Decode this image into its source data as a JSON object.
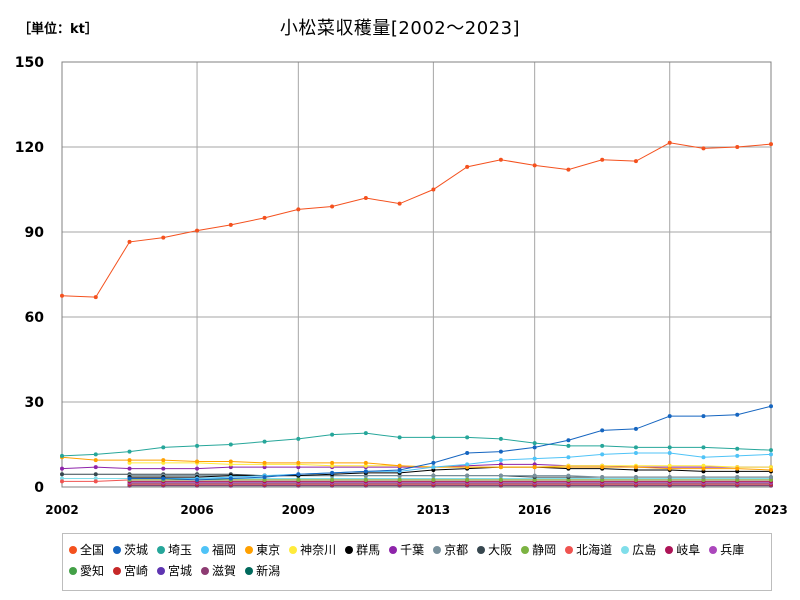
{
  "unit_label": "［単位：kt］",
  "chart_data": {
    "type": "line",
    "title": "小松菜収穫量[2002～2023]",
    "xlabel": "",
    "ylabel": "",
    "xlim": [
      2002,
      2023
    ],
    "ylim": [
      0,
      150
    ],
    "yticks": [
      0,
      30,
      60,
      90,
      120,
      150
    ],
    "xticks": [
      2002,
      2006,
      2009,
      2013,
      2016,
      2020,
      2023
    ],
    "grid": true,
    "legend_position": "bottom",
    "x": [
      2002,
      2003,
      2004,
      2005,
      2006,
      2007,
      2008,
      2009,
      2010,
      2011,
      2012,
      2013,
      2014,
      2015,
      2016,
      2017,
      2018,
      2019,
      2020,
      2021,
      2022,
      2023
    ],
    "series": [
      {
        "name": "全国",
        "color": "#f4511e",
        "values": [
          67.5,
          67.0,
          86.5,
          88.0,
          90.5,
          92.5,
          95.0,
          98.0,
          99.0,
          102.0,
          100.0,
          105.0,
          113.0,
          115.5,
          113.5,
          112.0,
          115.5,
          115.0,
          121.5,
          119.5,
          120.0,
          121.0
        ]
      },
      {
        "name": "茨城",
        "color": "#1565c0",
        "values": [
          null,
          null,
          3.0,
          3.0,
          2.5,
          3.0,
          3.5,
          4.5,
          5.0,
          5.5,
          6.0,
          8.5,
          12.0,
          12.5,
          14.0,
          16.5,
          20.0,
          20.5,
          25.0,
          25.0,
          25.5,
          28.5
        ]
      },
      {
        "name": "埼玉",
        "color": "#26a69a",
        "values": [
          11.0,
          11.5,
          12.5,
          14.0,
          14.5,
          15.0,
          16.0,
          17.0,
          18.5,
          19.0,
          17.5,
          17.5,
          17.5,
          17.0,
          15.5,
          14.5,
          14.5,
          14.0,
          14.0,
          14.0,
          13.5,
          13.0
        ]
      },
      {
        "name": "福岡",
        "color": "#4fc3f7",
        "values": [
          null,
          null,
          3.0,
          3.0,
          3.0,
          3.5,
          4.0,
          4.5,
          5.0,
          5.5,
          5.5,
          7.0,
          8.0,
          9.5,
          10.0,
          10.5,
          11.5,
          12.0,
          12.0,
          10.5,
          11.0,
          11.5
        ]
      },
      {
        "name": "東京",
        "color": "#ffa000",
        "values": [
          10.5,
          9.5,
          9.5,
          9.5,
          9.0,
          9.0,
          8.5,
          8.5,
          8.5,
          8.5,
          7.5,
          7.0,
          7.0,
          7.0,
          7.0,
          7.0,
          7.0,
          7.0,
          6.5,
          6.5,
          6.5,
          6.0
        ]
      },
      {
        "name": "神奈川",
        "color": "#ffeb3b",
        "values": [
          null,
          null,
          8.5,
          8.5,
          8.5,
          8.0,
          8.0,
          8.0,
          7.5,
          7.5,
          7.5,
          7.0,
          7.0,
          7.0,
          7.0,
          7.5,
          7.5,
          7.5,
          7.5,
          7.5,
          7.0,
          7.0
        ]
      },
      {
        "name": "群馬",
        "color": "#000000",
        "values": [
          null,
          null,
          3.5,
          3.5,
          3.5,
          4.0,
          4.0,
          4.0,
          4.5,
          5.0,
          5.0,
          6.0,
          6.5,
          7.0,
          7.0,
          6.5,
          6.5,
          6.0,
          6.0,
          5.5,
          5.5,
          5.5
        ]
      },
      {
        "name": "千葉",
        "color": "#8e24aa",
        "values": [
          6.5,
          7.0,
          6.5,
          6.5,
          6.5,
          7.0,
          7.0,
          7.0,
          7.0,
          7.0,
          7.0,
          7.0,
          7.5,
          8.0,
          8.0,
          7.5,
          7.5,
          7.0,
          7.0,
          7.0,
          7.0,
          7.0
        ]
      },
      {
        "name": "京都",
        "color": "#78909c",
        "values": [
          null,
          null,
          4.0,
          4.0,
          4.0,
          4.0,
          4.0,
          4.0,
          4.0,
          4.0,
          4.0,
          4.0,
          4.0,
          4.0,
          4.0,
          4.0,
          3.5,
          3.5,
          3.5,
          3.5,
          3.5,
          3.5
        ]
      },
      {
        "name": "大阪",
        "color": "#37474f",
        "values": [
          4.5,
          4.5,
          4.5,
          4.5,
          4.5,
          4.5,
          4.0,
          4.0,
          4.0,
          4.0,
          4.0,
          4.0,
          4.0,
          4.0,
          3.5,
          3.5,
          3.5,
          3.5,
          3.5,
          3.5,
          3.5,
          3.5
        ]
      },
      {
        "name": "静岡",
        "color": "#7cb342",
        "values": [
          null,
          null,
          2.5,
          2.5,
          2.5,
          2.5,
          2.5,
          2.5,
          2.5,
          2.5,
          2.5,
          2.5,
          2.5,
          2.5,
          2.5,
          2.5,
          2.5,
          2.5,
          2.5,
          2.5,
          2.5,
          2.5
        ]
      },
      {
        "name": "北海道",
        "color": "#ef5350",
        "values": [
          2.0,
          2.0,
          2.5,
          2.5,
          2.5,
          2.5,
          2.5,
          2.5,
          2.5,
          2.5,
          2.5,
          2.5,
          2.5,
          2.5,
          2.5,
          2.5,
          2.5,
          2.5,
          2.5,
          2.5,
          2.5,
          2.5
        ]
      },
      {
        "name": "広島",
        "color": "#80deea",
        "values": [
          3.0,
          3.0,
          3.0,
          3.0,
          3.0,
          3.0,
          3.0,
          3.0,
          3.0,
          3.0,
          3.0,
          3.0,
          3.0,
          3.0,
          3.0,
          3.0,
          3.0,
          3.0,
          3.0,
          3.0,
          3.0,
          3.0
        ]
      },
      {
        "name": "岐阜",
        "color": "#ad1457",
        "values": [
          null,
          null,
          2.0,
          2.0,
          2.0,
          2.0,
          2.0,
          2.0,
          2.0,
          2.0,
          2.0,
          2.0,
          2.0,
          2.0,
          2.0,
          2.0,
          2.0,
          2.0,
          2.0,
          2.0,
          2.0,
          2.0
        ]
      },
      {
        "name": "兵庫",
        "color": "#ab47bc",
        "values": [
          null,
          null,
          1.5,
          1.5,
          1.5,
          1.5,
          1.5,
          1.5,
          1.5,
          1.5,
          1.5,
          1.5,
          1.5,
          1.5,
          1.5,
          1.5,
          1.5,
          1.5,
          1.5,
          1.5,
          1.5,
          1.5
        ]
      },
      {
        "name": "愛知",
        "color": "#43a047",
        "values": [
          null,
          null,
          1.5,
          1.5,
          1.5,
          1.5,
          1.5,
          1.5,
          1.5,
          1.5,
          1.5,
          1.5,
          1.5,
          1.5,
          1.5,
          1.5,
          1.5,
          1.5,
          1.5,
          1.5,
          1.5,
          1.5
        ]
      },
      {
        "name": "宮崎",
        "color": "#c62828",
        "values": [
          null,
          null,
          1.0,
          1.0,
          1.0,
          1.0,
          1.0,
          1.0,
          1.0,
          1.0,
          1.0,
          1.0,
          1.0,
          1.0,
          1.0,
          1.0,
          1.0,
          1.0,
          1.0,
          1.0,
          1.0,
          1.0
        ]
      },
      {
        "name": "宮城",
        "color": "#5e35b1",
        "values": [
          null,
          null,
          1.0,
          1.0,
          1.0,
          1.0,
          1.0,
          1.0,
          1.0,
          1.0,
          1.0,
          1.0,
          1.0,
          1.0,
          1.0,
          1.0,
          1.0,
          1.0,
          1.0,
          1.0,
          1.0,
          1.0
        ]
      },
      {
        "name": "滋賀",
        "color": "#8d3b72",
        "values": [
          null,
          null,
          0.5,
          0.5,
          0.5,
          0.5,
          0.5,
          0.5,
          0.5,
          0.5,
          0.5,
          0.5,
          0.5,
          0.5,
          0.5,
          0.5,
          0.5,
          0.5,
          0.5,
          0.5,
          0.5,
          0.5
        ]
      },
      {
        "name": "新潟",
        "color": "#00695c",
        "values": [
          null,
          null,
          0.5,
          0.5,
          0.5,
          0.5,
          0.5,
          0.5,
          0.5,
          0.5,
          0.5,
          0.5,
          0.5,
          0.5,
          0.5,
          0.5,
          0.5,
          0.5,
          0.5,
          0.5,
          0.5,
          0.5
        ]
      }
    ]
  }
}
